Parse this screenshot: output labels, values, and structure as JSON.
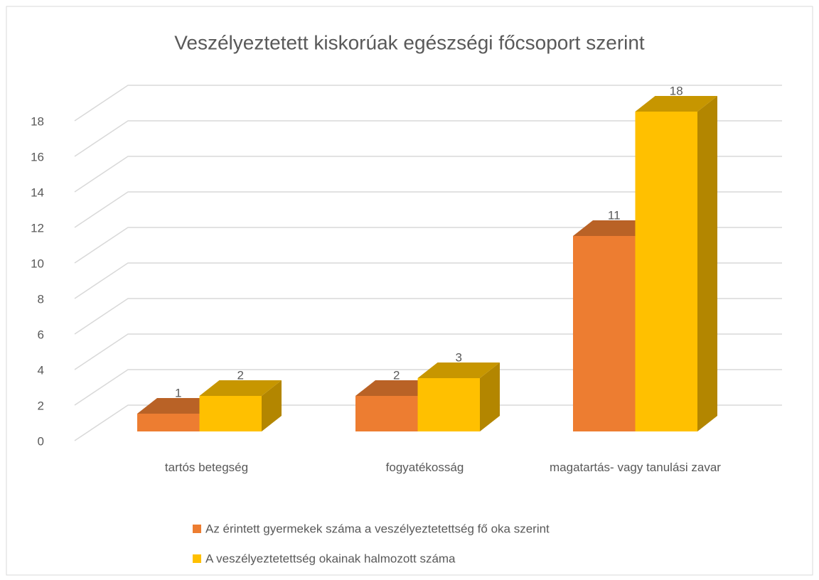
{
  "chart_data": {
    "type": "bar3d",
    "title": "Veszélyeztetett kiskorúak egészségi főcsoport szerint",
    "categories": [
      "tartós betegség",
      "fogyatékosság",
      "magatartás- vagy tanulási zavar"
    ],
    "series": [
      {
        "name": "Az érintett gyermekek száma a veszélyeztetettség fő oka szerint",
        "color": "#ed7d31",
        "values": [
          1,
          2,
          11
        ]
      },
      {
        "name": "A veszélyeztetettség okainak halmozott száma",
        "color": "#ffc000",
        "values": [
          2,
          3,
          18
        ]
      }
    ],
    "ylim": [
      0,
      18
    ],
    "yticks": [
      0,
      2,
      4,
      6,
      8,
      10,
      12,
      14,
      16,
      18
    ],
    "grid": true,
    "legend": "bottom"
  }
}
